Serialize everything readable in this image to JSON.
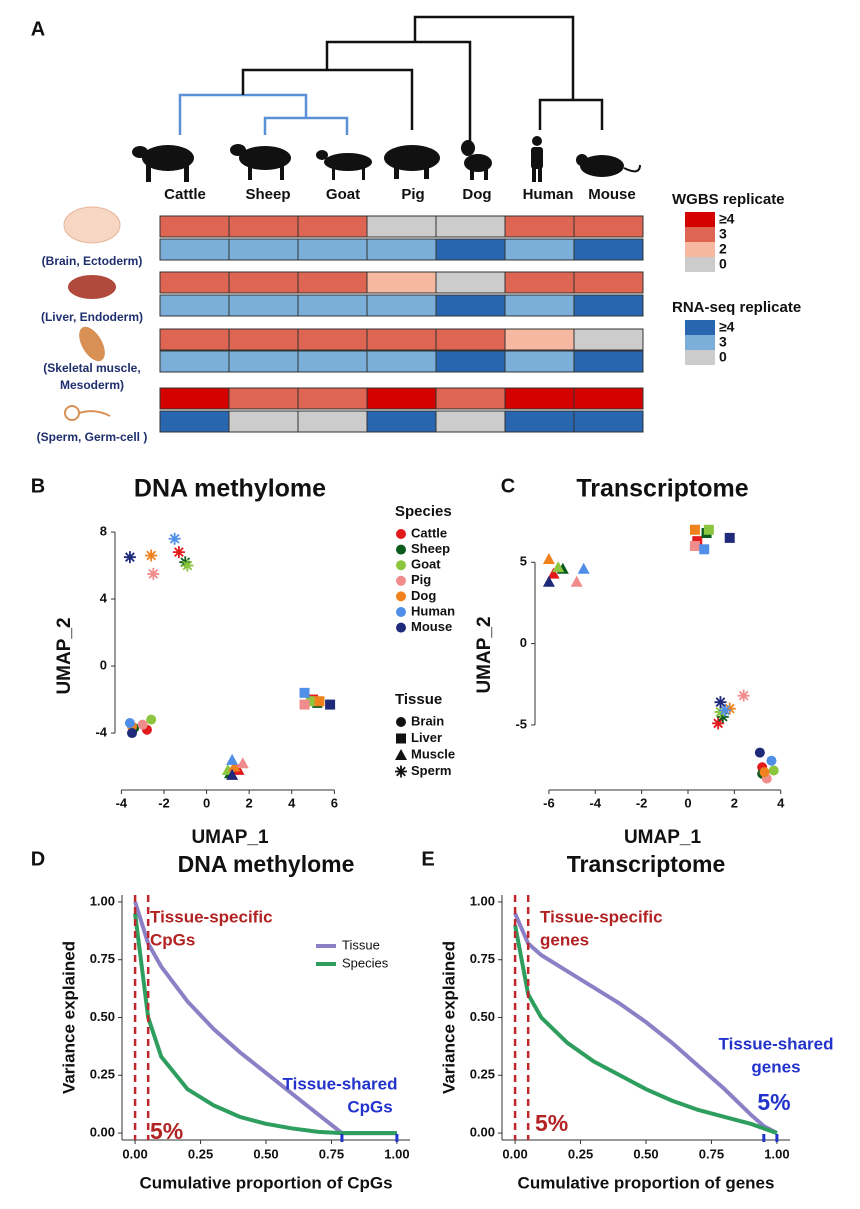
{
  "chart_data": [
    {
      "type": "heatmap",
      "panel": "A",
      "species": [
        "Cattle",
        "Sheep",
        "Goat",
        "Pig",
        "Dog",
        "Human",
        "Mouse"
      ],
      "rows": [
        {
          "label": [
            "(Brain, Ectoderm)"
          ],
          "wgbs": [
            3,
            3,
            3,
            0,
            0,
            3,
            3
          ],
          "rnaseq": [
            3,
            3,
            3,
            3,
            4,
            3,
            4
          ]
        },
        {
          "label": [
            "(Liver, Endoderm)"
          ],
          "wgbs": [
            3,
            3,
            3,
            2,
            0,
            3,
            3
          ],
          "rnaseq": [
            3,
            3,
            3,
            3,
            4,
            3,
            4
          ]
        },
        {
          "label": [
            "(Skeletal muscle,",
            "Mesoderm)"
          ],
          "wgbs": [
            3,
            3,
            3,
            3,
            3,
            2,
            0
          ],
          "rnaseq": [
            3,
            3,
            3,
            3,
            4,
            3,
            4
          ]
        },
        {
          "label": [
            "(Sperm, Germ-cell )"
          ],
          "wgbs": [
            4,
            3,
            3,
            4,
            3,
            4,
            4
          ],
          "rnaseq": [
            4,
            0,
            0,
            4,
            0,
            4,
            4
          ]
        }
      ],
      "legends": [
        {
          "title": "WGBS replicate",
          "items": [
            {
              "value": 4,
              "label": "≥4",
              "color": "#d40000"
            },
            {
              "value": 3,
              "color": "#df6553"
            },
            {
              "value": 2,
              "color": "#f6b8a0"
            },
            {
              "value": 0,
              "color": "#cccccc"
            }
          ]
        },
        {
          "title": "RNA-seq replicate",
          "items": [
            {
              "value": 4,
              "label": "≥4",
              "color": "#2866b0"
            },
            {
              "value": 3,
              "color": "#7bafd9"
            },
            {
              "value": 0,
              "color": "#cccccc"
            }
          ]
        }
      ]
    },
    {
      "type": "scatter",
      "panel": "B",
      "title": "DNA methylome",
      "xlabel": "UMAP_1",
      "ylabel": "UMAP_2",
      "xlim": [
        -4.3,
        6.5
      ],
      "ylim": [
        -7.4,
        8.6
      ],
      "xticks": [
        -4,
        -2,
        0,
        2,
        4,
        6
      ],
      "yticks": [
        -4,
        0,
        4,
        8
      ],
      "species_legend_title": "Species",
      "tissue_legend_title": "Tissue",
      "tissues": [
        "Brain",
        "Liver",
        "Muscle",
        "Sperm"
      ],
      "series": [
        {
          "name": "Cattle",
          "color": "#e31a1c",
          "x": [
            -2.8,
            5.0,
            1.5,
            -1.3
          ],
          "y": [
            -3.8,
            -2.0,
            -6.2,
            6.8
          ]
        },
        {
          "name": "Sheep",
          "color": "#0b5a1e",
          "x": [
            -3.4,
            5.2,
            1.1,
            -1.0
          ],
          "y": [
            -3.7,
            -2.2,
            -6.4,
            6.2
          ]
        },
        {
          "name": "Goat",
          "color": "#8cc63f",
          "x": [
            -2.6,
            4.9,
            1.0,
            -0.9
          ],
          "y": [
            -3.2,
            -2.1,
            -6.2,
            6.0
          ]
        },
        {
          "name": "Pig",
          "color": "#f08c8c",
          "x": [
            -3.0,
            4.6,
            1.7,
            -2.5
          ],
          "y": [
            -3.5,
            -2.3,
            -5.8,
            5.5
          ]
        },
        {
          "name": "Dog",
          "color": "#f0821e",
          "x": [
            -3.5,
            5.3,
            1.3,
            -2.6
          ],
          "y": [
            -3.6,
            -2.1,
            -6.0,
            6.6
          ]
        },
        {
          "name": "Human",
          "color": "#4f8fe8",
          "x": [
            -3.6,
            4.6,
            1.2,
            -1.5
          ],
          "y": [
            -3.4,
            -1.6,
            -5.6,
            7.6
          ]
        },
        {
          "name": "Mouse",
          "color": "#1f2a7a",
          "x": [
            -3.5,
            5.8,
            1.2,
            -3.6
          ],
          "y": [
            -4.0,
            -2.3,
            -6.5,
            6.5
          ]
        }
      ]
    },
    {
      "type": "scatter",
      "panel": "C",
      "title": "Transcriptome",
      "xlabel": "UMAP_1",
      "ylabel": "UMAP_2",
      "xlim": [
        -6.6,
        4.4
      ],
      "ylim": [
        -9.0,
        7.6
      ],
      "xticks": [
        -6,
        -4,
        -2,
        0,
        2,
        4
      ],
      "yticks": [
        -5,
        0,
        5
      ],
      "series": [
        {
          "color": "#e31a1c",
          "x": [
            3.2,
            0.4,
            -5.8,
            1.3
          ],
          "y": [
            -7.6,
            6.3,
            4.3,
            -4.9
          ]
        },
        {
          "color": "#0b5a1e",
          "x": [
            3.2,
            0.8,
            -5.4,
            1.5
          ],
          "y": [
            -8.0,
            6.8,
            4.6,
            -4.5
          ]
        },
        {
          "color": "#8cc63f",
          "x": [
            3.7,
            0.9,
            -5.6,
            1.4
          ],
          "y": [
            -7.8,
            7.0,
            4.7,
            -4.2
          ]
        },
        {
          "color": "#f08c8c",
          "x": [
            3.4,
            0.3,
            -4.8,
            2.4
          ],
          "y": [
            -8.3,
            6.0,
            3.8,
            -3.2
          ]
        },
        {
          "color": "#f0821e",
          "x": [
            3.3,
            0.3,
            -6.0,
            1.8
          ],
          "y": [
            -7.9,
            7.0,
            5.2,
            -4.0
          ]
        },
        {
          "color": "#4f8fe8",
          "x": [
            3.6,
            0.7,
            -4.5,
            1.6
          ],
          "y": [
            -7.2,
            5.8,
            4.6,
            -4.1
          ]
        },
        {
          "color": "#1f2a7a",
          "x": [
            3.1,
            1.8,
            -6.0,
            1.4
          ],
          "y": [
            -6.7,
            6.5,
            3.8,
            -3.6
          ]
        }
      ]
    },
    {
      "type": "line",
      "panel": "D",
      "title": "DNA methylome",
      "xlabel": "Cumulative proportion of CpGs",
      "ylabel": "Variance explained",
      "xlim": [
        -0.05,
        1.05
      ],
      "ylim": [
        -0.03,
        1.03
      ],
      "xticks": [
        {
          "value": 0,
          "label": "0.00"
        },
        {
          "value": 0.25,
          "label": "0.25"
        },
        {
          "value": 0.5,
          "label": "0.50"
        },
        {
          "value": 0.75,
          "label": "0.75"
        },
        {
          "value": 1,
          "label": "1.00"
        }
      ],
      "yticks": [
        {
          "value": 0,
          "label": "0.00"
        },
        {
          "value": 0.25,
          "label": "0.25"
        },
        {
          "value": 0.5,
          "label": "0.50"
        },
        {
          "value": 0.75,
          "label": "0.75"
        },
        {
          "value": 1,
          "label": "1.00"
        }
      ],
      "x": [
        0,
        0.05,
        0.1,
        0.2,
        0.3,
        0.4,
        0.5,
        0.6,
        0.7,
        0.79,
        0.9,
        1.0
      ],
      "series": [
        {
          "name": "Tissue",
          "color": "#8b80c6",
          "values": [
            1.0,
            0.82,
            0.72,
            0.57,
            0.45,
            0.35,
            0.26,
            0.17,
            0.08,
            0,
            0,
            0
          ]
        },
        {
          "name": "Species",
          "color": "#2e9e5e",
          "values": [
            0.95,
            0.5,
            0.33,
            0.19,
            0.12,
            0.07,
            0.04,
            0.02,
            0.005,
            0,
            0,
            0
          ]
        }
      ],
      "legend": true,
      "cutoffs": [
        0,
        0.05
      ],
      "shared_marks": [
        0.79,
        1.0
      ],
      "annotations": [
        {
          "lines": [
            "Tissue-specific",
            "CpGs"
          ],
          "color": "#b22222"
        },
        {
          "lines": [
            "5%"
          ],
          "color": "#b22222"
        },
        {
          "lines": [
            "Tissue-shared",
            "CpGs"
          ],
          "color": "#2233cc"
        }
      ]
    },
    {
      "type": "line",
      "panel": "E",
      "title": "Transcriptome",
      "xlabel": "Cumulative proportion of genes",
      "ylabel": "Variance explained",
      "xlim": [
        -0.05,
        1.05
      ],
      "ylim": [
        -0.03,
        1.03
      ],
      "xticks": [
        {
          "value": 0,
          "label": "0.00"
        },
        {
          "value": 0.25,
          "label": "0.25"
        },
        {
          "value": 0.5,
          "label": "0.50"
        },
        {
          "value": 0.75,
          "label": "0.75"
        },
        {
          "value": 1,
          "label": "1.00"
        }
      ],
      "yticks": [
        {
          "value": 0,
          "label": "0.00"
        },
        {
          "value": 0.25,
          "label": "0.25"
        },
        {
          "value": 0.5,
          "label": "0.50"
        },
        {
          "value": 0.75,
          "label": "0.75"
        },
        {
          "value": 1,
          "label": "1.00"
        }
      ],
      "x": [
        0,
        0.05,
        0.1,
        0.2,
        0.3,
        0.4,
        0.5,
        0.6,
        0.7,
        0.8,
        0.9,
        0.95,
        1.0
      ],
      "series": [
        {
          "color": "#8b80c6",
          "values": [
            0.95,
            0.82,
            0.77,
            0.7,
            0.63,
            0.56,
            0.48,
            0.39,
            0.29,
            0.19,
            0.08,
            0.03,
            0
          ]
        },
        {
          "color": "#2e9e5e",
          "values": [
            0.9,
            0.6,
            0.5,
            0.39,
            0.31,
            0.25,
            0.19,
            0.14,
            0.1,
            0.07,
            0.04,
            0.02,
            0
          ]
        }
      ],
      "cutoffs": [
        0,
        0.05
      ],
      "shared_marks": [
        0.95,
        1.0
      ],
      "annotations": [
        {
          "lines": [
            "Tissue-specific",
            "genes"
          ],
          "color": "#b22222"
        },
        {
          "lines": [
            "5%"
          ],
          "color": "#b22222"
        },
        {
          "lines": [
            "Tissue-shared",
            "genes"
          ],
          "color": "#2233cc"
        },
        {
          "lines": [
            "5%"
          ],
          "color": "#2233cc"
        }
      ]
    }
  ]
}
